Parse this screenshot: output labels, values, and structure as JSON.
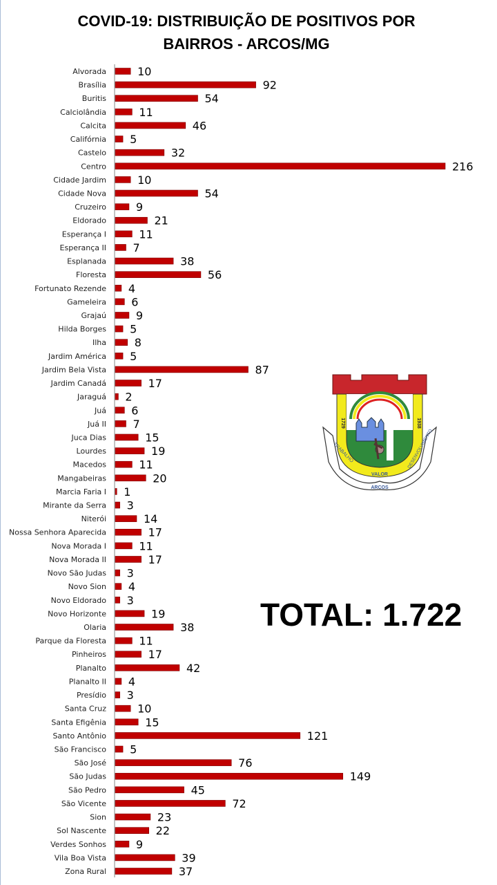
{
  "colors": {
    "bar": "#c00000",
    "bar_edge": "#7f0000",
    "axis": "#868686",
    "text": "#000000"
  },
  "chart_data": {
    "type": "bar",
    "orientation": "horizontal",
    "title_lines": [
      "COVID-19: DISTRIBUIÇÃO DE POSITIVOS POR",
      "BAIRROS - ARCOS/MG"
    ],
    "xlabel": "",
    "ylabel": "",
    "grid": false,
    "data_labels": true,
    "xlim": [
      0,
      216
    ],
    "categories": [
      "Alvorada",
      "Brasília",
      "Buritis",
      "Calciolândia",
      "Calcita",
      "Califórnia",
      "Castelo",
      "Centro",
      "Cidade Jardim",
      "Cidade Nova",
      "Cruzeiro",
      "Eldorado",
      "Esperança I",
      "Esperança II",
      "Esplanada",
      "Floresta",
      "Fortunato Rezende",
      "Gameleira",
      "Grajaú",
      "Hilda Borges",
      "Ilha",
      "Jardim América",
      "Jardim Bela Vista",
      "Jardim Canadá",
      "Jaraguá",
      "Juá",
      "Juá II",
      "Juca Dias",
      "Lourdes",
      "Macedos",
      "Mangabeiras",
      "Marcia Faria I",
      "Mirante da Serra",
      "Niterói",
      "Nossa Senhora Aparecida",
      "Nova Morada I",
      "Nova Morada II",
      "Novo São Judas",
      "Novo Sion",
      "Novo Eldorado",
      "Novo Horizonte",
      "Olaria",
      "Parque da Floresta",
      "Pinheiros",
      "Planalto",
      "Planalto II",
      "Presídio",
      "Santa Cruz",
      "Santa Efigênia",
      "Santo Antônio",
      "São Francisco",
      "São José",
      "São Judas",
      "São Pedro",
      "São Vicente",
      "Sion",
      "Sol Nascente",
      "Verdes Sonhos",
      "Vila Boa Vista",
      "Zona Rural"
    ],
    "values": [
      10,
      92,
      54,
      11,
      46,
      5,
      32,
      216,
      10,
      54,
      9,
      21,
      11,
      7,
      38,
      56,
      4,
      6,
      9,
      5,
      8,
      5,
      87,
      17,
      2,
      6,
      7,
      15,
      19,
      11,
      20,
      1,
      3,
      14,
      17,
      11,
      17,
      3,
      4,
      3,
      19,
      38,
      11,
      17,
      42,
      4,
      3,
      10,
      15,
      121,
      5,
      76,
      149,
      45,
      72,
      23,
      22,
      9,
      39,
      37
    ],
    "annotation": "TOTAL: 1.722"
  },
  "logo": {
    "years_left": "1729",
    "years_right": "1938",
    "ribbon_left": "TRABALHO",
    "ribbon_center": "VALOR",
    "ribbon_right": "DESENVOLVIMENTO",
    "ribbon_bottom": "ARCOS"
  }
}
